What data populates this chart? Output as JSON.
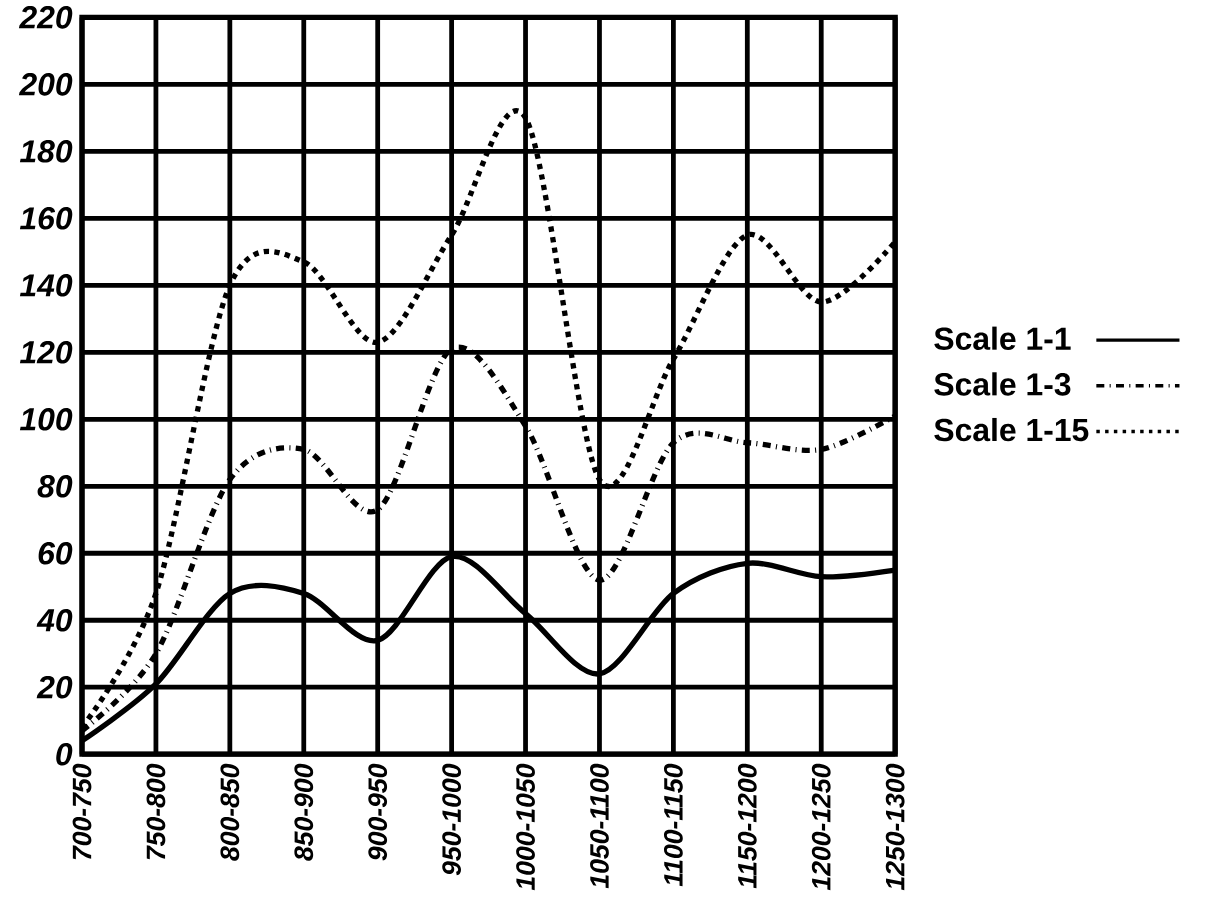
{
  "chart_data": {
    "type": "line",
    "categories": [
      "700-750",
      "750-800",
      "800-850",
      "850-900",
      "900-950",
      "950-1000",
      "1000-1050",
      "1050-1100",
      "1100-1150",
      "1150-1200",
      "1200-1250",
      "1250-1300"
    ],
    "series": [
      {
        "name": "Scale 1-1",
        "color": "#000000",
        "line_style": "solid",
        "values": [
          4,
          21,
          48,
          48,
          34,
          59,
          42,
          24,
          48,
          57,
          53,
          55
        ]
      },
      {
        "name": "Scale 1-3",
        "color": "#000000",
        "line_style": "dashdot",
        "values": [
          7,
          30,
          82,
          91,
          73,
          121,
          98,
          52,
          93,
          93,
          91,
          101
        ]
      },
      {
        "name": "Scale 1-15",
        "color": "#000000",
        "line_style": "dotted",
        "values": [
          8,
          48,
          140,
          147,
          123,
          155,
          190,
          82,
          118,
          155,
          135,
          153
        ]
      }
    ],
    "ylim": [
      0,
      220
    ],
    "yticks": [
      0,
      20,
      40,
      60,
      80,
      100,
      120,
      140,
      160,
      180,
      200,
      220
    ],
    "grid": true,
    "legend": "right",
    "marker": "none"
  }
}
